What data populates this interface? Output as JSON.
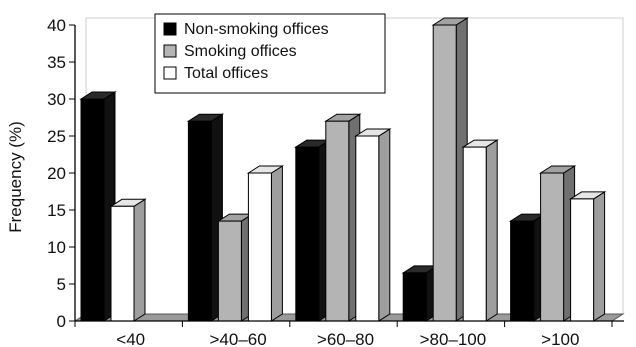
{
  "chart_data": {
    "type": "bar",
    "ylabel": "Frequency (%)",
    "xlabel": "",
    "ylim": [
      0,
      40
    ],
    "yticks": [
      0,
      5,
      10,
      15,
      20,
      25,
      30,
      35,
      40
    ],
    "grid": false,
    "three_d": true,
    "legend_position": "top-center",
    "categories": [
      "<40",
      ">40–60",
      ">60–80",
      ">80–100",
      ">100"
    ],
    "series": [
      {
        "name": "Non-smoking offices",
        "values": [
          30,
          27,
          23.5,
          6.5,
          13.5
        ],
        "color": "#000000"
      },
      {
        "name": "Smoking offices",
        "values": [
          0,
          13.5,
          27,
          40,
          20
        ],
        "color": "#b4b4b4"
      },
      {
        "name": "Total offices",
        "values": [
          15.5,
          20,
          25,
          23.5,
          16.5
        ],
        "color": "#ffffff"
      }
    ]
  }
}
